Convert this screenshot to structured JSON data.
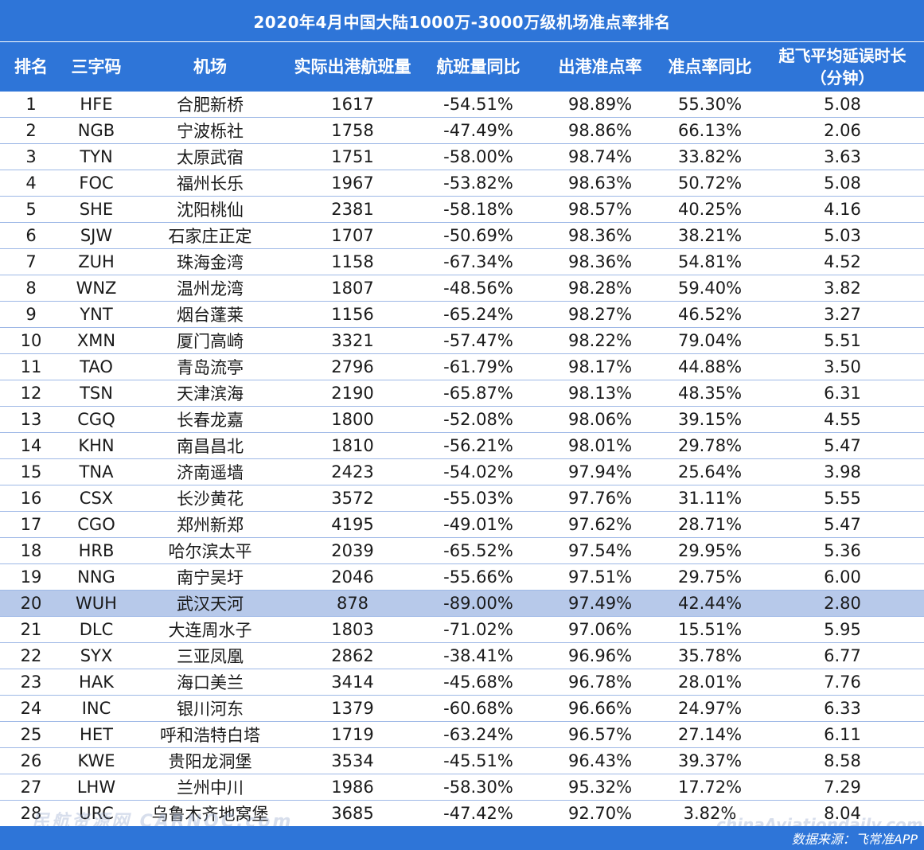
{
  "title": "2020年4月中国大陆1000万-3000万级机场准点率排名",
  "columns": [
    "排名",
    "三字码",
    "机场",
    "实际出港航班量",
    "航班量同比",
    "出港准点率",
    "准点率同比",
    "起飞平均延误时长",
    "（分钟）"
  ],
  "rows": [
    [
      "1",
      "HFE",
      "合肥新桥",
      "1617",
      "-54.51%",
      "98.89%",
      "55.30%",
      "5.08"
    ],
    [
      "2",
      "NGB",
      "宁波栎社",
      "1758",
      "-47.49%",
      "98.86%",
      "66.13%",
      "2.06"
    ],
    [
      "3",
      "TYN",
      "太原武宿",
      "1751",
      "-58.00%",
      "98.74%",
      "33.82%",
      "3.63"
    ],
    [
      "4",
      "FOC",
      "福州长乐",
      "1967",
      "-53.82%",
      "98.63%",
      "50.72%",
      "5.08"
    ],
    [
      "5",
      "SHE",
      "沈阳桃仙",
      "2381",
      "-58.18%",
      "98.57%",
      "40.25%",
      "4.16"
    ],
    [
      "6",
      "SJW",
      "石家庄正定",
      "1707",
      "-50.69%",
      "98.36%",
      "38.21%",
      "5.03"
    ],
    [
      "7",
      "ZUH",
      "珠海金湾",
      "1158",
      "-67.34%",
      "98.36%",
      "54.81%",
      "4.52"
    ],
    [
      "8",
      "WNZ",
      "温州龙湾",
      "1807",
      "-48.56%",
      "98.28%",
      "59.40%",
      "3.82"
    ],
    [
      "9",
      "YNT",
      "烟台蓬莱",
      "1156",
      "-65.24%",
      "98.27%",
      "46.52%",
      "3.27"
    ],
    [
      "10",
      "XMN",
      "厦门高崎",
      "3321",
      "-57.47%",
      "98.22%",
      "79.04%",
      "5.51"
    ],
    [
      "11",
      "TAO",
      "青岛流亭",
      "2796",
      "-61.79%",
      "98.17%",
      "44.88%",
      "3.50"
    ],
    [
      "12",
      "TSN",
      "天津滨海",
      "2190",
      "-65.87%",
      "98.13%",
      "48.35%",
      "6.31"
    ],
    [
      "13",
      "CGQ",
      "长春龙嘉",
      "1800",
      "-52.08%",
      "98.06%",
      "39.15%",
      "4.55"
    ],
    [
      "14",
      "KHN",
      "南昌昌北",
      "1810",
      "-56.21%",
      "98.01%",
      "29.78%",
      "5.47"
    ],
    [
      "15",
      "TNA",
      "济南遥墙",
      "2423",
      "-54.02%",
      "97.94%",
      "25.64%",
      "3.98"
    ],
    [
      "16",
      "CSX",
      "长沙黄花",
      "3572",
      "-55.03%",
      "97.76%",
      "31.11%",
      "5.55"
    ],
    [
      "17",
      "CGO",
      "郑州新郑",
      "4195",
      "-49.01%",
      "97.62%",
      "28.71%",
      "5.47"
    ],
    [
      "18",
      "HRB",
      "哈尔滨太平",
      "2039",
      "-65.52%",
      "97.54%",
      "29.95%",
      "5.36"
    ],
    [
      "19",
      "NNG",
      "南宁吴圩",
      "2046",
      "-55.66%",
      "97.51%",
      "29.75%",
      "6.00"
    ],
    [
      "20",
      "WUH",
      "武汉天河",
      "878",
      "-89.00%",
      "97.49%",
      "42.44%",
      "2.80"
    ],
    [
      "21",
      "DLC",
      "大连周水子",
      "1803",
      "-71.02%",
      "97.06%",
      "15.51%",
      "5.95"
    ],
    [
      "22",
      "SYX",
      "三亚凤凰",
      "2862",
      "-38.41%",
      "96.96%",
      "35.78%",
      "6.77"
    ],
    [
      "23",
      "HAK",
      "海口美兰",
      "3414",
      "-45.68%",
      "96.78%",
      "28.01%",
      "7.76"
    ],
    [
      "24",
      "INC",
      "银川河东",
      "1379",
      "-60.68%",
      "96.66%",
      "24.97%",
      "6.33"
    ],
    [
      "25",
      "HET",
      "呼和浩特白塔",
      "1719",
      "-63.24%",
      "96.57%",
      "27.14%",
      "6.11"
    ],
    [
      "26",
      "KWE",
      "贵阳龙洞堡",
      "3534",
      "-45.51%",
      "96.43%",
      "39.37%",
      "8.58"
    ],
    [
      "27",
      "LHW",
      "兰州中川",
      "1986",
      "-58.30%",
      "95.32%",
      "17.72%",
      "7.29"
    ],
    [
      "28",
      "URC",
      "乌鲁木齐地窝堡",
      "3685",
      "-47.42%",
      "92.70%",
      "3.82%",
      "8.04"
    ]
  ],
  "highlight_rank": "20",
  "source": "数据来源：飞常准APP",
  "watermark_left": "民航资源网 CARNOC.com",
  "watermark_right": "chinaAviationdaily.com",
  "colors": {
    "header_bg": "#2e75d8",
    "highlight_bg": "#b7c9ea",
    "row_border": "#9eb8e6"
  }
}
